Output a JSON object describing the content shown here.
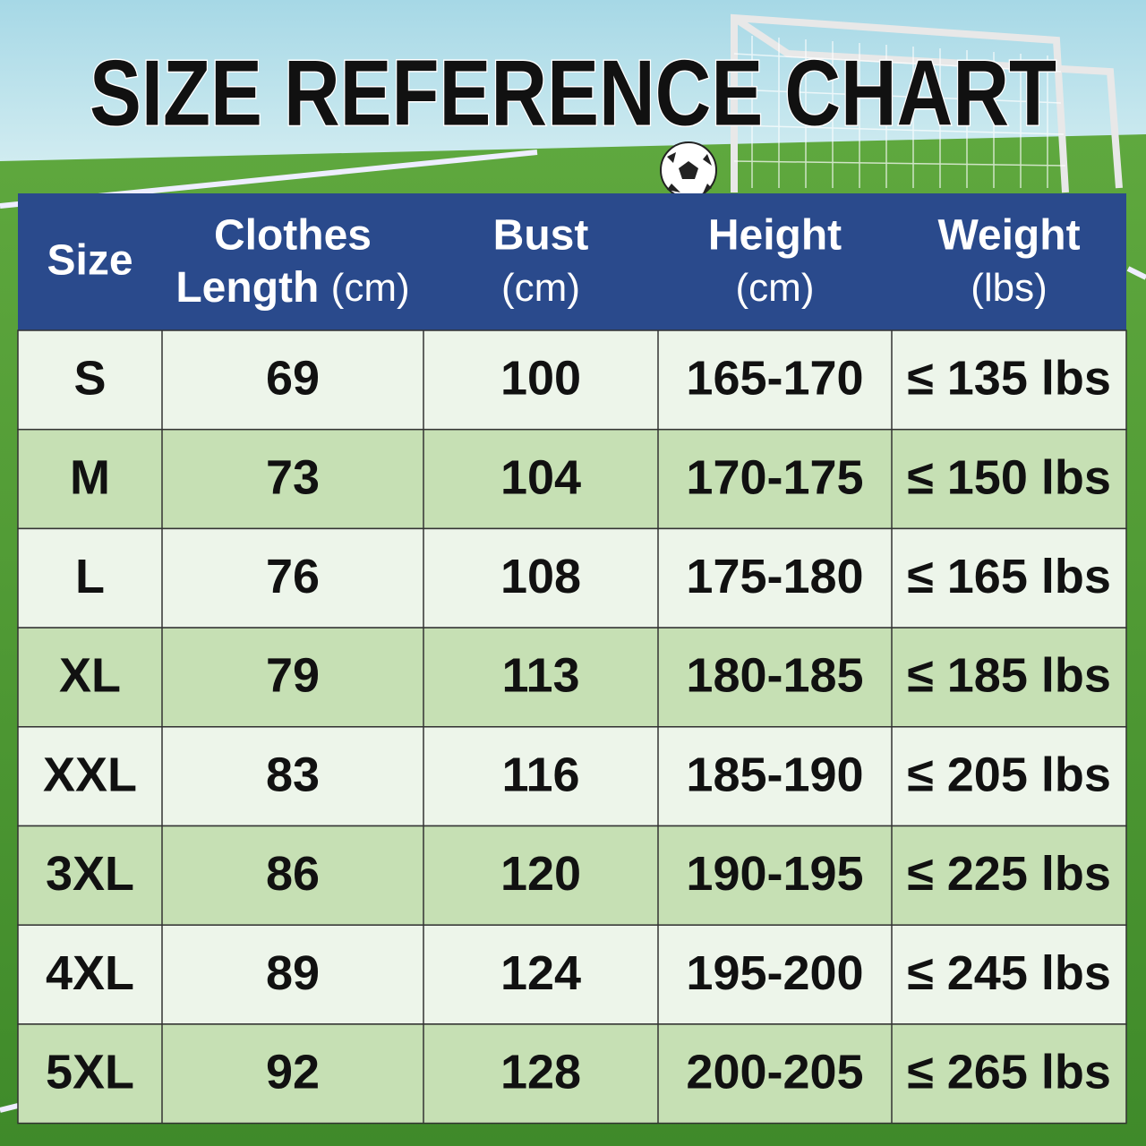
{
  "title": "SIZE REFERENCE CHART",
  "table": {
    "headers": [
      {
        "lines": [
          "Size"
        ]
      },
      {
        "lines": [
          "Clothes",
          "Length"
        ],
        "unit": "(cm)"
      },
      {
        "lines": [
          "Bust"
        ],
        "unit": "(cm)"
      },
      {
        "lines": [
          "Height"
        ],
        "unit": "(cm)"
      },
      {
        "lines": [
          "Weight"
        ],
        "unit": "(lbs)"
      }
    ],
    "rows": [
      [
        "S",
        "69",
        "100",
        "165-170",
        "≤ 135 lbs"
      ],
      [
        "M",
        "73",
        "104",
        "170-175",
        "≤ 150 lbs"
      ],
      [
        "L",
        "76",
        "108",
        "175-180",
        "≤ 165 lbs"
      ],
      [
        "XL",
        "79",
        "113",
        "180-185",
        "≤ 185 lbs"
      ],
      [
        "XXL",
        "83",
        "116",
        "185-190",
        "≤ 205 lbs"
      ],
      [
        "3XL",
        "86",
        "120",
        "190-195",
        "≤ 225 lbs"
      ],
      [
        "4XL",
        "89",
        "124",
        "195-200",
        "≤ 245 lbs"
      ],
      [
        "5XL",
        "92",
        "128",
        "200-205",
        "≤ 265 lbs"
      ]
    ]
  }
}
